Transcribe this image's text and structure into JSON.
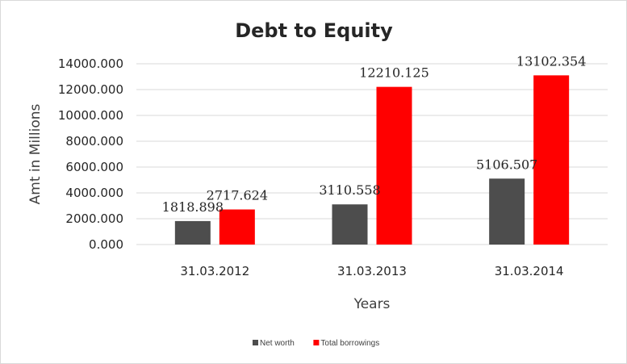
{
  "chart_data": {
    "type": "bar",
    "title": "Debt to Equity",
    "xlabel": "Years",
    "ylabel": "Amt in Millions",
    "categories": [
      "31.03.2012",
      "31.03.2013",
      "31.03.2014"
    ],
    "series": [
      {
        "name": "Net worth",
        "color": "#4d4d4d",
        "values": [
          1818.898,
          3110.558,
          5106.507
        ],
        "labels": [
          "1818.898",
          "3110.558",
          "5106.507"
        ]
      },
      {
        "name": "Total borrowings",
        "color": "#ff0000",
        "values": [
          2717.624,
          12210.125,
          13102.354
        ],
        "labels": [
          "2717.624",
          "12210.125",
          "13102.354"
        ]
      }
    ],
    "ylim": [
      0,
      14000
    ],
    "yticks": [
      "0.000",
      "2000.000",
      "4000.000",
      "6000.000",
      "8000.000",
      "10000.000",
      "12000.000",
      "14000.000"
    ],
    "grid": true,
    "legend_position": "bottom"
  }
}
